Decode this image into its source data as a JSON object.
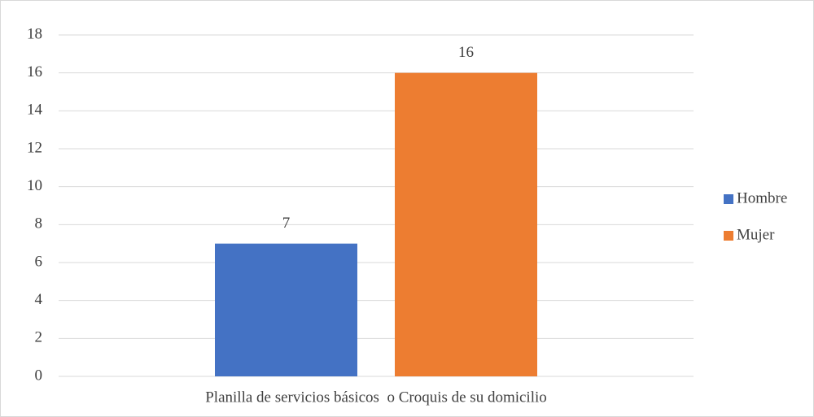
{
  "chart_data": {
    "type": "bar",
    "categories": [
      "Planilla de servicios básicos  o Croquis de su domicilio"
    ],
    "series": [
      {
        "name": "Hombre",
        "color": "#4472c4",
        "values": [
          7
        ]
      },
      {
        "name": "Mujer",
        "color": "#ed7d31",
        "values": [
          16
        ]
      }
    ],
    "ylim": [
      0,
      18
    ],
    "yticks": [
      0,
      2,
      4,
      6,
      8,
      10,
      12,
      14,
      16,
      18
    ],
    "grid": true,
    "legend": "right",
    "data_labels": true
  }
}
